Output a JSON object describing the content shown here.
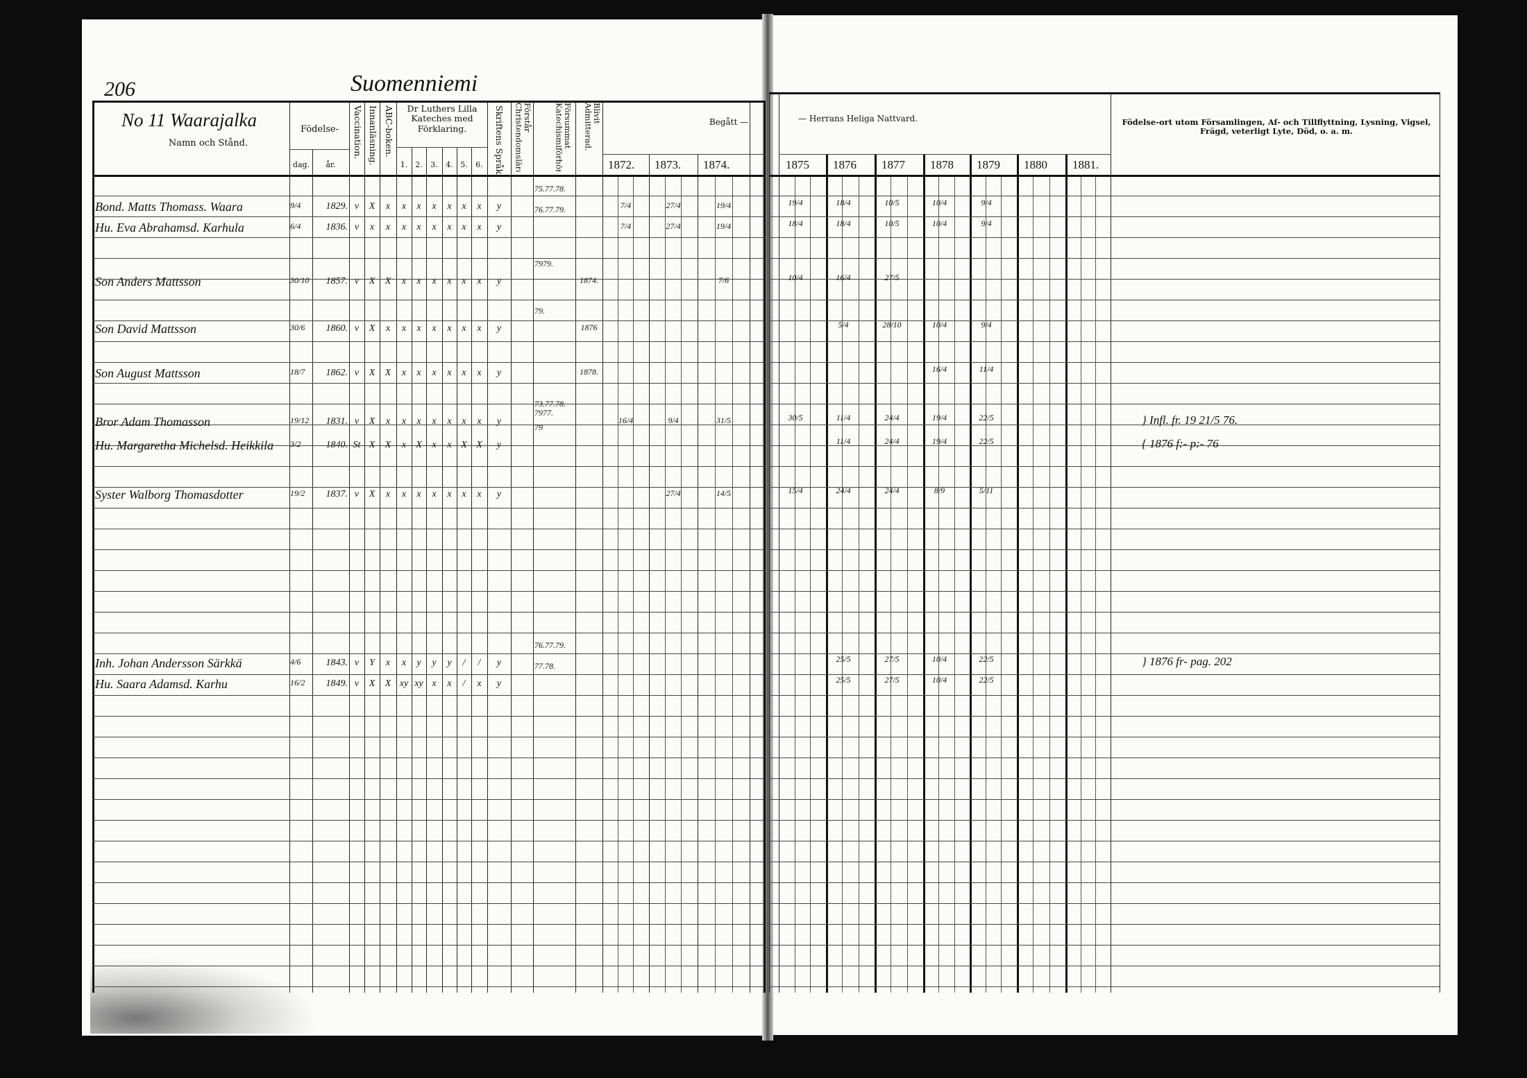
{
  "page_number": "206",
  "parish": "Suomenniemi",
  "household": "No 11 Waarajalka",
  "headers": {
    "name": "Namn och Stånd.",
    "fodelse": "Födelse-",
    "dag": "dag.",
    "ar": "år.",
    "vaccination": "Vaccination.",
    "innanlasning": "Innanläsning.",
    "abc": "ABC-boken.",
    "katekes": "Dr Luthers Lilla Kateches med Förklaring.",
    "katekes_parts": [
      "1.",
      "2.",
      "3.",
      "4.",
      "5.",
      "6."
    ],
    "skriftens": "Skriftens Språk.",
    "forstar": "Förstår Christendomsläran.",
    "forsummat": "Försummat Katechismiförhören.",
    "admitterad": "Blivit Admitterad.",
    "begatt": "Begått —",
    "nattvard": "— Herrans Heliga Nattvard.",
    "years_left": [
      "1872.",
      "1873.",
      "1874."
    ],
    "years_right": [
      "1875",
      "1876",
      "1877",
      "1878",
      "1879",
      "1880",
      "1881."
    ],
    "notes": "Födelse-ort utom Församlingen, Af- och Tillflyttning, Lysning, Vigsel, Frägd, veterligt Lyte, Död, o. a. m."
  },
  "entries": [
    {
      "name": "Bond. Matts Thomass. Waara",
      "dag": "9/4",
      "ar": "1829.",
      "vacc": "v",
      "innan": "X",
      "abc": "x",
      "kat": [
        "x",
        "x",
        "x",
        "x",
        "x",
        "x"
      ],
      "skrift": "y",
      "forsummat": "75.77.78.",
      "admit": "",
      "begatt": [
        "7/4",
        "27/4",
        "19/4"
      ],
      "nattvard": [
        "19/4",
        "18/4",
        "10/5",
        "10/4",
        "9/4",
        "",
        ""
      ],
      "note": ""
    },
    {
      "name": "Hu. Eva Abrahamsd. Karhula",
      "dag": "6/4",
      "ar": "1836.",
      "vacc": "v",
      "innan": "x",
      "abc": "x",
      "kat": [
        "x",
        "x",
        "x",
        "x",
        "x",
        "x"
      ],
      "skrift": "y",
      "forsummat": "76.77.79.",
      "admit": "",
      "begatt": [
        "7/4",
        "27/4",
        "19/4"
      ],
      "nattvard": [
        "18/4",
        "18/4",
        "10/5",
        "10/4",
        "9/4",
        "",
        ""
      ],
      "note": ""
    },
    {
      "name": "Son Anders Mattsson",
      "dag": "30/10",
      "ar": "1857.",
      "vacc": "v",
      "innan": "X",
      "abc": "X",
      "kat": [
        "x",
        "x",
        "x",
        "x",
        "x",
        "x"
      ],
      "skrift": "y",
      "forsummat": "7979.",
      "admit": "1874.",
      "begatt": [
        "",
        "",
        "7/6"
      ],
      "nattvard": [
        "10/4",
        "16/4",
        "27/5",
        "",
        "",
        "",
        ""
      ],
      "note": ""
    },
    {
      "name": "Son David Mattsson",
      "dag": "30/6",
      "ar": "1860.",
      "vacc": "v",
      "innan": "X",
      "abc": "x",
      "kat": [
        "x",
        "x",
        "x",
        "x",
        "x",
        "x"
      ],
      "skrift": "y",
      "forsummat": "79.",
      "admit": "1876",
      "begatt": [
        "",
        "",
        ""
      ],
      "nattvard": [
        "",
        "5/4",
        "28/10",
        "10/4",
        "9/4",
        "",
        ""
      ],
      "note": ""
    },
    {
      "name": "Son August Mattsson",
      "dag": "18/7",
      "ar": "1862.",
      "vacc": "v",
      "innan": "X",
      "abc": "X",
      "kat": [
        "x",
        "x",
        "x",
        "x",
        "x",
        "x"
      ],
      "skrift": "y",
      "forsummat": "",
      "admit": "1878.",
      "begatt": [
        "",
        "",
        ""
      ],
      "nattvard": [
        "",
        "",
        "",
        "16/4",
        "11/4",
        "",
        ""
      ],
      "note": ""
    },
    {
      "name": "Bror Adam Thomasson",
      "dag": "19/12",
      "ar": "1831.",
      "vacc": "v",
      "innan": "X",
      "abc": "x",
      "kat": [
        "x",
        "x",
        "x",
        "x",
        "x",
        "x"
      ],
      "skrift": "y",
      "forsummat": "73.77.78. 7977.",
      "admit": "",
      "begatt": [
        "16/4",
        "9/4",
        "31/5"
      ],
      "nattvard": [
        "30/5",
        "11/4",
        "24/4",
        "19/4",
        "22/5",
        "",
        ""
      ],
      "note": "} Infl. fr. 19 21/5 76."
    },
    {
      "name": "Hu. Margaretha Michelsd. Heikkila",
      "dag": "3/2",
      "ar": "1840.",
      "vacc": "St",
      "innan": "X",
      "abc": "X",
      "kat": [
        "x",
        "X",
        "x",
        "x",
        "X",
        "X"
      ],
      "skrift": "y",
      "forsummat": "79",
      "admit": "",
      "begatt": [
        "",
        "",
        ""
      ],
      "nattvard": [
        "",
        "11/4",
        "24/4",
        "19/4",
        "22/5",
        "",
        ""
      ],
      "note": "{ 1876 f:- p:- 76"
    },
    {
      "name": "Syster Walborg Thomasdotter",
      "dag": "19/2",
      "ar": "1837.",
      "vacc": "v",
      "innan": "X",
      "abc": "x",
      "kat": [
        "x",
        "x",
        "x",
        "x",
        "x",
        "x"
      ],
      "skrift": "y",
      "forsummat": "",
      "admit": "",
      "begatt": [
        "",
        "27/4",
        "14/5"
      ],
      "nattvard": [
        "15/4",
        "24/4",
        "24/4",
        "8/9",
        "5/11",
        "",
        ""
      ],
      "note": ""
    },
    {
      "name": "Inh. Johan Andersson Särkkä",
      "dag": "4/6",
      "ar": "1843.",
      "vacc": "v",
      "innan": "Y",
      "abc": "x",
      "kat": [
        "x",
        "y",
        "y",
        "y",
        "/",
        "/"
      ],
      "skrift": "y",
      "forsummat": "76.77.79.",
      "admit": "",
      "begatt": [
        "",
        "",
        ""
      ],
      "nattvard": [
        "",
        "25/5",
        "27/5",
        "10/4",
        "22/5",
        "",
        ""
      ],
      "note": "} 1876 fr- pag. 202"
    },
    {
      "name": "Hu. Saara Adamsd. Karhu",
      "dag": "16/2",
      "ar": "1849.",
      "vacc": "v",
      "innan": "X",
      "abc": "X",
      "kat": [
        "xy",
        "xy",
        "x",
        "x",
        "/",
        "x"
      ],
      "skrift": "y",
      "forsummat": "77.78.",
      "admit": "",
      "begatt": [
        "",
        "",
        ""
      ],
      "nattvard": [
        "",
        "25/5",
        "27/5",
        "10/4",
        "22/5",
        "",
        ""
      ],
      "note": ""
    }
  ]
}
